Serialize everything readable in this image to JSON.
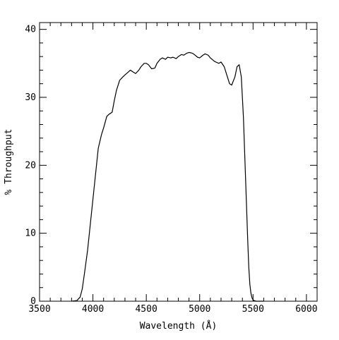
{
  "chart_data": {
    "type": "line",
    "xlabel": "Wavelength (Å)",
    "ylabel": "% Throughput",
    "xlim": [
      3500,
      6100
    ],
    "ylim": [
      0,
      41
    ],
    "x_ticks": [
      3500,
      4000,
      4500,
      5000,
      5500,
      6000
    ],
    "y_ticks": [
      0,
      10,
      20,
      30,
      40
    ],
    "x_tick_labels": [
      "3500",
      "4000",
      "4500",
      "5000",
      "5500",
      "6000"
    ],
    "y_tick_labels": [
      "0",
      "10",
      "20",
      "30",
      "40"
    ],
    "grid": false,
    "series": [
      {
        "x": [
          3800,
          3850,
          3880,
          3900,
          3920,
          3950,
          4000,
          4050,
          4080,
          4100,
          4130,
          4150,
          4180,
          4200,
          4220,
          4250,
          4280,
          4300,
          4330,
          4350,
          4380,
          4400,
          4430,
          4450,
          4480,
          4500,
          4520,
          4550,
          4580,
          4600,
          4630,
          4650,
          4680,
          4700,
          4730,
          4750,
          4780,
          4800,
          4830,
          4850,
          4880,
          4900,
          4930,
          4950,
          4980,
          5000,
          5030,
          5050,
          5080,
          5100,
          5130,
          5150,
          5180,
          5200,
          5230,
          5250,
          5280,
          5300,
          5330,
          5350,
          5370,
          5390,
          5410,
          5430,
          5450,
          5460,
          5470,
          5480,
          5490,
          5500,
          5510,
          5520,
          5530,
          5550,
          5600
        ],
        "y": [
          0,
          0.1,
          0.6,
          1.8,
          4.0,
          7.5,
          15.0,
          22.5,
          24.5,
          25.5,
          27.2,
          27.5,
          27.8,
          29.5,
          31.0,
          32.5,
          33.0,
          33.3,
          33.7,
          34.0,
          33.7,
          33.5,
          34.0,
          34.5,
          35.0,
          35.0,
          34.8,
          34.2,
          34.3,
          35.0,
          35.6,
          35.8,
          35.6,
          35.9,
          35.8,
          35.9,
          35.7,
          36.0,
          36.3,
          36.2,
          36.5,
          36.6,
          36.5,
          36.3,
          35.9,
          35.8,
          36.2,
          36.4,
          36.2,
          35.8,
          35.4,
          35.2,
          35.0,
          35.2,
          34.5,
          33.5,
          32.0,
          31.8,
          33.0,
          34.5,
          34.8,
          33.0,
          27.0,
          18.0,
          9.0,
          5.0,
          2.5,
          1.2,
          0.5,
          0.2,
          0.1,
          0.05,
          0,
          0,
          0
        ]
      }
    ]
  }
}
